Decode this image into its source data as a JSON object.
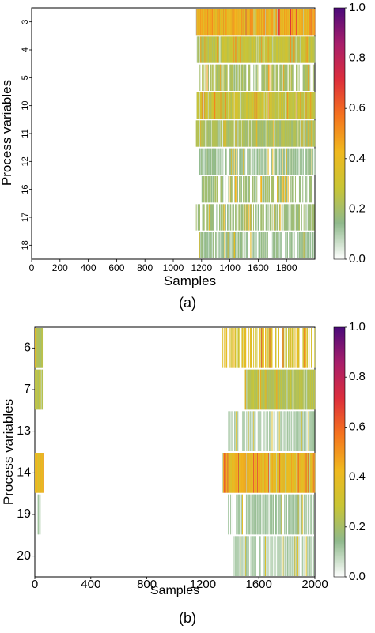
{
  "panels": [
    {
      "caption": "(a)",
      "chart_data": {
        "type": "heatmap",
        "title": "",
        "xlabel": "Samples",
        "ylabel": "Process variables",
        "xlim": [
          0,
          2000
        ],
        "x_ticks": [
          "0",
          "200",
          "400",
          "600",
          "800",
          "1000",
          "1200",
          "1400",
          "1600",
          "1800"
        ],
        "y_categories": [
          "3",
          "4",
          "5",
          "10",
          "11",
          "12",
          "16",
          "17",
          "18"
        ],
        "colorbar": {
          "min": 0.0,
          "max": 1.0,
          "tick_labels": [
            "0.0",
            "0.2",
            "0.4",
            "0.6",
            "0.8",
            "1.0"
          ],
          "colors": [
            "#ffffff",
            "#8fb98c",
            "#c9c534",
            "#f0b81e",
            "#f5731e",
            "#dd2e3c",
            "#a81e6b",
            "#4b0a7a"
          ]
        },
        "rows": [
          {
            "variable": "3",
            "start": 1160,
            "end": 2000,
            "level": 0.45
          },
          {
            "variable": "4",
            "start": 1165,
            "end": 2000,
            "level": 0.28
          },
          {
            "variable": "5",
            "start": 1170,
            "end": 2000,
            "level": 0.12
          },
          {
            "variable": "10",
            "start": 1165,
            "end": 2000,
            "level": 0.3
          },
          {
            "variable": "11",
            "start": 1160,
            "end": 2000,
            "level": 0.22
          },
          {
            "variable": "12",
            "start": 1180,
            "end": 2000,
            "level": 0.08
          },
          {
            "variable": "16",
            "start": 1200,
            "end": 2000,
            "level": 0.1
          },
          {
            "variable": "17",
            "start": 1160,
            "end": 2000,
            "level": 0.1
          },
          {
            "variable": "18",
            "start": 1180,
            "end": 2000,
            "level": 0.08
          }
        ]
      }
    },
    {
      "caption": "(b)",
      "chart_data": {
        "type": "heatmap",
        "title": "",
        "xlabel": "Samples",
        "ylabel": "Process variables",
        "xlim": [
          0,
          2000
        ],
        "x_ticks": [
          "0",
          "400",
          "800",
          "1200",
          "1600",
          "2000"
        ],
        "y_categories": [
          "6",
          "7",
          "13",
          "14",
          "19",
          "20"
        ],
        "colorbar": {
          "min": 0.0,
          "max": 1.0,
          "tick_labels": [
            "0.0",
            "0.2",
            "0.4",
            "0.6",
            "0.8",
            "1.0"
          ],
          "colors": [
            "#ffffff",
            "#8fb98c",
            "#c9c534",
            "#f0b81e",
            "#f5731e",
            "#dd2e3c",
            "#a81e6b",
            "#4b0a7a"
          ]
        },
        "rows": [
          {
            "variable": "6",
            "start": 1340,
            "end": 2000,
            "level": 0.2,
            "early_end": 55,
            "early_level": 0.22
          },
          {
            "variable": "7",
            "start": 1500,
            "end": 2000,
            "level": 0.25,
            "early_end": 55,
            "early_level": 0.25
          },
          {
            "variable": "13",
            "start": 1380,
            "end": 2000,
            "level": 0.06,
            "early_end": 0,
            "early_level": 0
          },
          {
            "variable": "14",
            "start": 1340,
            "end": 2000,
            "level": 0.42,
            "early_end": 60,
            "early_level": 0.42
          },
          {
            "variable": "19",
            "start": 1380,
            "end": 2000,
            "level": 0.07,
            "early_end": 40,
            "early_level": 0.06
          },
          {
            "variable": "20",
            "start": 1420,
            "end": 2000,
            "level": 0.06,
            "early_end": 0,
            "early_level": 0
          }
        ]
      }
    }
  ]
}
